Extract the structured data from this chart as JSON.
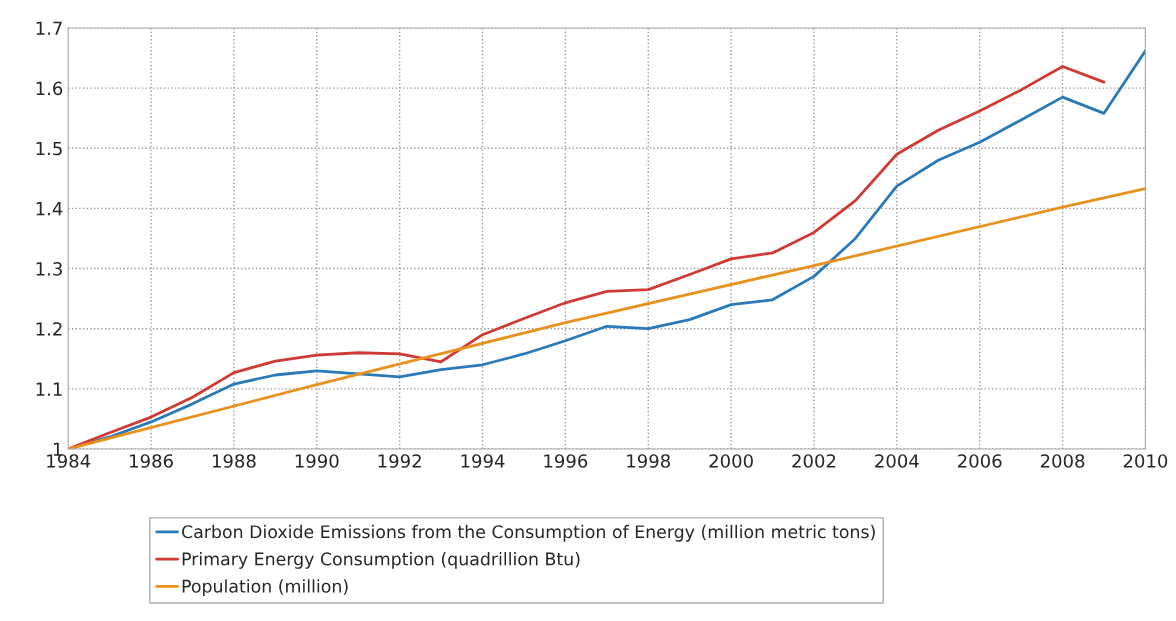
{
  "chart_data": {
    "type": "line",
    "x": [
      1984,
      1985,
      1986,
      1987,
      1988,
      1989,
      1990,
      1991,
      1992,
      1993,
      1994,
      1995,
      1996,
      1997,
      1998,
      1999,
      2000,
      2001,
      2002,
      2003,
      2004,
      2005,
      2006,
      2007,
      2008,
      2009,
      2010
    ],
    "series": [
      {
        "name": "Carbon Dioxide Emissions from the Consumption of Energy (million metric tons)",
        "color": "#2a7ab8",
        "values": [
          1.0,
          1.02,
          1.045,
          1.075,
          1.108,
          1.123,
          1.13,
          1.125,
          1.12,
          1.132,
          1.14,
          1.158,
          1.18,
          1.204,
          1.2,
          1.215,
          1.24,
          1.248,
          1.287,
          1.35,
          1.437,
          1.48,
          1.51,
          1.547,
          1.585,
          1.558,
          1.662
        ]
      },
      {
        "name": "Primary Energy Consumption (quadrillion Btu)",
        "color": "#d03a35",
        "values": [
          1.0,
          1.027,
          1.053,
          1.086,
          1.127,
          1.146,
          1.156,
          1.16,
          1.158,
          1.145,
          1.19,
          1.217,
          1.243,
          1.262,
          1.265,
          1.29,
          1.316,
          1.326,
          1.36,
          1.413,
          1.49,
          1.53,
          1.562,
          1.597,
          1.636,
          1.61,
          null
        ]
      },
      {
        "name": "Population (million)",
        "color": "#e8921e",
        "x": [
          1984,
          1990,
          1996,
          2002,
          2008,
          2010
        ],
        "values": [
          1.0,
          1.107,
          1.21,
          1.305,
          1.402,
          1.433
        ]
      }
    ],
    "xlim": [
      1984,
      2010
    ],
    "xticks": [
      1984,
      1986,
      1988,
      1990,
      1992,
      1994,
      1996,
      1998,
      2000,
      2002,
      2004,
      2006,
      2008,
      2010
    ],
    "ylim": [
      1,
      1.7
    ],
    "yticks": [
      1,
      1.1,
      1.2,
      1.3,
      1.4,
      1.5,
      1.6,
      1.7
    ],
    "grid": true,
    "legend": "bottom",
    "marker": "none",
    "line_style": "solid"
  }
}
